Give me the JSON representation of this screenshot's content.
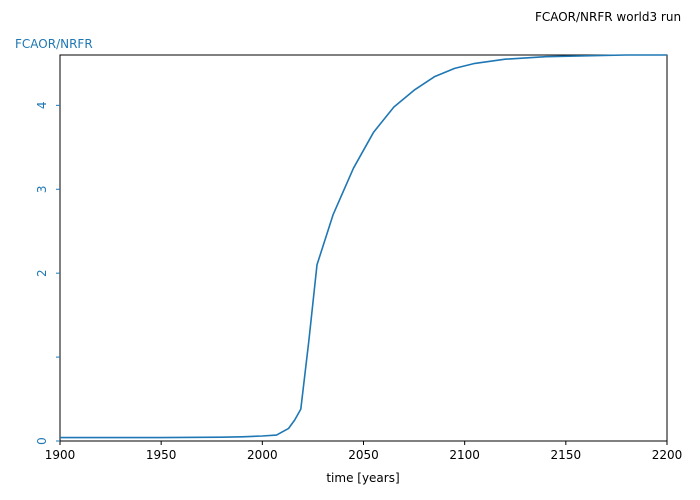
{
  "chart_data": {
    "type": "line",
    "title": "FCAOR/NRFR world3 run",
    "xlabel": "time [years]",
    "ylabel": "FCAOR/NRFR",
    "xlim": [
      1900,
      2200
    ],
    "ylim": [
      0,
      4.6
    ],
    "x_ticks": [
      1900,
      1950,
      2000,
      2050,
      2100,
      2150,
      2200
    ],
    "y_ticks": [
      0,
      1,
      2,
      3,
      4
    ],
    "y_tick_labels": [
      "0",
      "",
      "2",
      "3",
      "4"
    ],
    "grid": false,
    "colors": {
      "series": "#1f77b4",
      "axis": "#000000",
      "ylabel": "#1f77b4"
    },
    "series": [
      {
        "x": [
          1900,
          1950,
          1980,
          1990,
          2000,
          2007,
          2013,
          2016,
          2019,
          2023,
          2027,
          2035,
          2045,
          2055,
          2065,
          2075,
          2085,
          2095,
          2105,
          2120,
          2140,
          2160,
          2180,
          2200
        ],
        "y": [
          0.04,
          0.04,
          0.045,
          0.05,
          0.06,
          0.07,
          0.15,
          0.25,
          0.38,
          1.2,
          2.1,
          2.7,
          3.25,
          3.68,
          3.98,
          4.18,
          4.34,
          4.44,
          4.5,
          4.55,
          4.58,
          4.59,
          4.6,
          4.6
        ]
      }
    ]
  }
}
